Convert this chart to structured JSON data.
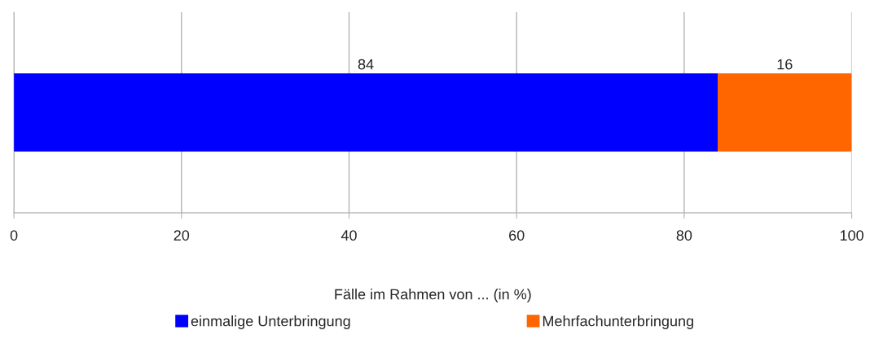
{
  "chart_data": {
    "type": "bar",
    "orientation": "horizontal",
    "stacked": true,
    "categories": [
      null
    ],
    "series": [
      {
        "name": "einmalige Unterbringung",
        "color": "#0000ff",
        "values": [
          84
        ]
      },
      {
        "name": "Mehrfachunterbringung",
        "color": "#ff6600",
        "values": [
          16
        ]
      }
    ],
    "xlabel": "Fälle im Rahmen von ... (in %)",
    "xlim": [
      0,
      100
    ],
    "xticks": [
      0,
      20,
      40,
      60,
      80,
      100
    ],
    "grid": "x",
    "legend": "bottom",
    "data_labels": true
  }
}
